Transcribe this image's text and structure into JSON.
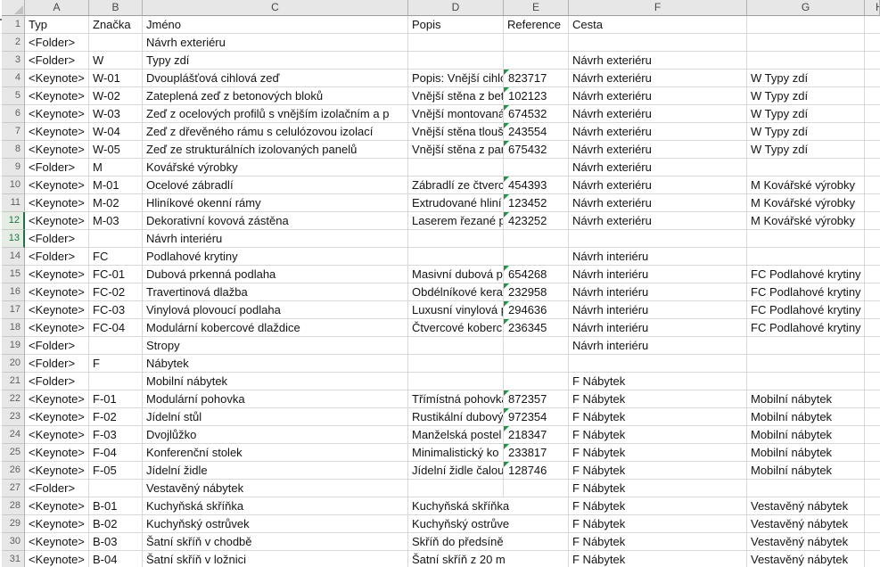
{
  "sheet": {
    "column_letters": [
      "A",
      "B",
      "C",
      "D",
      "E",
      "F",
      "G",
      "H"
    ],
    "selected_row_numbers": [
      12,
      13
    ],
    "rows": [
      {
        "n": 1,
        "typ": "Typ",
        "znacka": "Značka",
        "jmeno": "Jméno",
        "popis": "Popis",
        "reference": "Reference",
        "cesta": "Cesta",
        "skupina": ""
      },
      {
        "n": 2,
        "typ": "<Folder>",
        "znacka": "",
        "jmeno": "Návrh exteriéru",
        "popis": "",
        "reference": "",
        "cesta": "",
        "skupina": ""
      },
      {
        "n": 3,
        "typ": "<Folder>",
        "znacka": "W",
        "jmeno": "Typy zdí",
        "popis": "",
        "reference": "",
        "cesta": "Návrh exteriéru",
        "skupina": ""
      },
      {
        "n": 4,
        "typ": "<Keynote>",
        "znacka": "W-01",
        "jmeno": "Dvouplášťová cihlová zeď",
        "popis": "Popis: Vnější cihlo",
        "reference": "823717",
        "cesta": "Návrh exteriéru",
        "skupina": "W Typy zdí"
      },
      {
        "n": 5,
        "typ": "<Keynote>",
        "znacka": "W-02",
        "jmeno": "Zateplená zeď z betonových bloků",
        "popis": "Vnější stěna z beto",
        "reference": "102123",
        "cesta": "Návrh exteriéru",
        "skupina": "W Typy zdí"
      },
      {
        "n": 6,
        "typ": "<Keynote>",
        "znacka": "W-03",
        "jmeno": "Zeď z ocelových profilů s vnějším izolačním a p",
        "popis": "Vnější montovaná",
        "reference": "674532",
        "cesta": "Návrh exteriéru",
        "skupina": "W Typy zdí"
      },
      {
        "n": 7,
        "typ": "<Keynote>",
        "znacka": "W-04",
        "jmeno": "Zeď z dřevěného rámu s celulózovou izolací",
        "popis": "Vnější stěna tlouš",
        "reference": "243554",
        "cesta": "Návrh exteriéru",
        "skupina": "W Typy zdí"
      },
      {
        "n": 8,
        "typ": "<Keynote>",
        "znacka": "W-05",
        "jmeno": "Zeď ze strukturálních izolovaných panelů",
        "popis": "Vnější stěna z par",
        "reference": "675432",
        "cesta": "Návrh exteriéru",
        "skupina": "W Typy zdí"
      },
      {
        "n": 9,
        "typ": "<Folder>",
        "znacka": "M",
        "jmeno": "Kovářské výrobky",
        "popis": "",
        "reference": "",
        "cesta": "Návrh exteriéru",
        "skupina": ""
      },
      {
        "n": 10,
        "typ": "<Keynote>",
        "znacka": "M-01",
        "jmeno": "Ocelové zábradlí",
        "popis": "Zábradlí ze čtverco",
        "reference": "454393",
        "cesta": "Návrh exteriéru",
        "skupina": "M Kovářské výrobky"
      },
      {
        "n": 11,
        "typ": "<Keynote>",
        "znacka": "M-02",
        "jmeno": "Hliníkové okenní rámy",
        "popis": "Extrudované hliní",
        "reference": "123452",
        "cesta": "Návrh exteriéru",
        "skupina": "M Kovářské výrobky"
      },
      {
        "n": 12,
        "typ": "<Keynote>",
        "znacka": "M-03",
        "jmeno": "Dekorativní kovová zástěna",
        "popis": "Laserem řezané p",
        "reference": "423252",
        "cesta": "Návrh exteriéru",
        "skupina": "M Kovářské výrobky"
      },
      {
        "n": 13,
        "typ": "<Folder>",
        "znacka": "",
        "jmeno": "Návrh interiéru",
        "popis": "",
        "reference": "",
        "cesta": "",
        "skupina": ""
      },
      {
        "n": 14,
        "typ": "<Folder>",
        "znacka": "FC",
        "jmeno": "Podlahové krytiny",
        "popis": "",
        "reference": "",
        "cesta": "Návrh interiéru",
        "skupina": ""
      },
      {
        "n": 15,
        "typ": "<Keynote>",
        "znacka": "FC-01",
        "jmeno": "Dubová prkenná podlaha",
        "popis": "Masivní dubová p",
        "reference": "654268",
        "cesta": "Návrh interiéru",
        "skupina": "FC Podlahové krytiny"
      },
      {
        "n": 16,
        "typ": "<Keynote>",
        "znacka": "FC-02",
        "jmeno": "Travertinová dlažba",
        "popis": "Obdélníkové kera",
        "reference": "232958",
        "cesta": "Návrh interiéru",
        "skupina": "FC Podlahové krytiny"
      },
      {
        "n": 17,
        "typ": "<Keynote>",
        "znacka": "FC-03",
        "jmeno": "Vinylová plovoucí podlaha",
        "popis": "Luxusní vinylová p",
        "reference": "294636",
        "cesta": "Návrh interiéru",
        "skupina": "FC Podlahové krytiny"
      },
      {
        "n": 18,
        "typ": "<Keynote>",
        "znacka": "FC-04",
        "jmeno": "Modulární kobercové dlaždice",
        "popis": "Čtvercové koberc",
        "reference": "236345",
        "cesta": "Návrh interiéru",
        "skupina": "FC Podlahové krytiny"
      },
      {
        "n": 19,
        "typ": "<Folder>",
        "znacka": "",
        "jmeno": "Stropy",
        "popis": "",
        "reference": "",
        "cesta": "Návrh interiéru",
        "skupina": ""
      },
      {
        "n": 20,
        "typ": "<Folder>",
        "znacka": "F",
        "jmeno": "Nábytek",
        "popis": "",
        "reference": "",
        "cesta": "",
        "skupina": ""
      },
      {
        "n": 21,
        "typ": "<Folder>",
        "znacka": "",
        "jmeno": "Mobilní nábytek",
        "popis": "",
        "reference": "",
        "cesta": "F Nábytek",
        "skupina": ""
      },
      {
        "n": 22,
        "typ": "<Keynote>",
        "znacka": "F-01",
        "jmeno": "Modulární pohovka",
        "popis": "Třímístná pohovka",
        "reference": "872357",
        "cesta": "F Nábytek",
        "skupina": "Mobilní nábytek"
      },
      {
        "n": 23,
        "typ": "<Keynote>",
        "znacka": "F-02",
        "jmeno": "Jídelní stůl",
        "popis": "Rustikální dubový",
        "reference": "972354",
        "cesta": "F Nábytek",
        "skupina": "Mobilní nábytek"
      },
      {
        "n": 24,
        "typ": "<Keynote>",
        "znacka": "F-03",
        "jmeno": "Dvojlůžko",
        "popis": "Manželská postel",
        "reference": "218347",
        "cesta": "F Nábytek",
        "skupina": "Mobilní nábytek"
      },
      {
        "n": 25,
        "typ": "<Keynote>",
        "znacka": "F-04",
        "jmeno": "Konferenční stolek",
        "popis": "Minimalistický ko",
        "reference": "233817",
        "cesta": "F Nábytek",
        "skupina": "Mobilní nábytek"
      },
      {
        "n": 26,
        "typ": "<Keynote>",
        "znacka": "F-05",
        "jmeno": "Jídelní židle",
        "popis": "Jídelní židle čalou",
        "reference": "128746",
        "cesta": "F Nábytek",
        "skupina": "Mobilní nábytek"
      },
      {
        "n": 27,
        "typ": "<Folder>",
        "znacka": "",
        "jmeno": "Vestavěný nábytek",
        "popis": "",
        "reference": "",
        "cesta": "F Nábytek",
        "skupina": ""
      },
      {
        "n": 28,
        "typ": "<Keynote>",
        "znacka": "B-01",
        "jmeno": "Kuchyňská skříňka",
        "popis": "Kuchyňská skříňka",
        "reference": "",
        "cesta": "F Nábytek",
        "skupina": "Vestavěný nábytek"
      },
      {
        "n": 29,
        "typ": "<Keynote>",
        "znacka": "B-02",
        "jmeno": "Kuchyňský ostrůvek",
        "popis": "Kuchyňský ostrůve",
        "reference": "",
        "cesta": "F Nábytek",
        "skupina": "Vestavěný nábytek"
      },
      {
        "n": 30,
        "typ": "<Keynote>",
        "znacka": "B-03",
        "jmeno": "Šatní skříň v chodbě",
        "popis": "Skříň do předsíně",
        "reference": "",
        "cesta": "F Nábytek",
        "skupina": "Vestavěný nábytek"
      },
      {
        "n": 31,
        "typ": "<Keynote>",
        "znacka": "B-04",
        "jmeno": "Šatní skříň v ložnici",
        "popis": "Šatní skříň z 20 m",
        "reference": "",
        "cesta": "F Nábytek",
        "skupina": "Vestavěný nábytek"
      }
    ]
  },
  "colors": {
    "selection_accent": "#217346",
    "stored_as_text_indicator": "#1f9646",
    "grid_line": "#d9d9d9",
    "header_background": "#e7e7e7"
  }
}
